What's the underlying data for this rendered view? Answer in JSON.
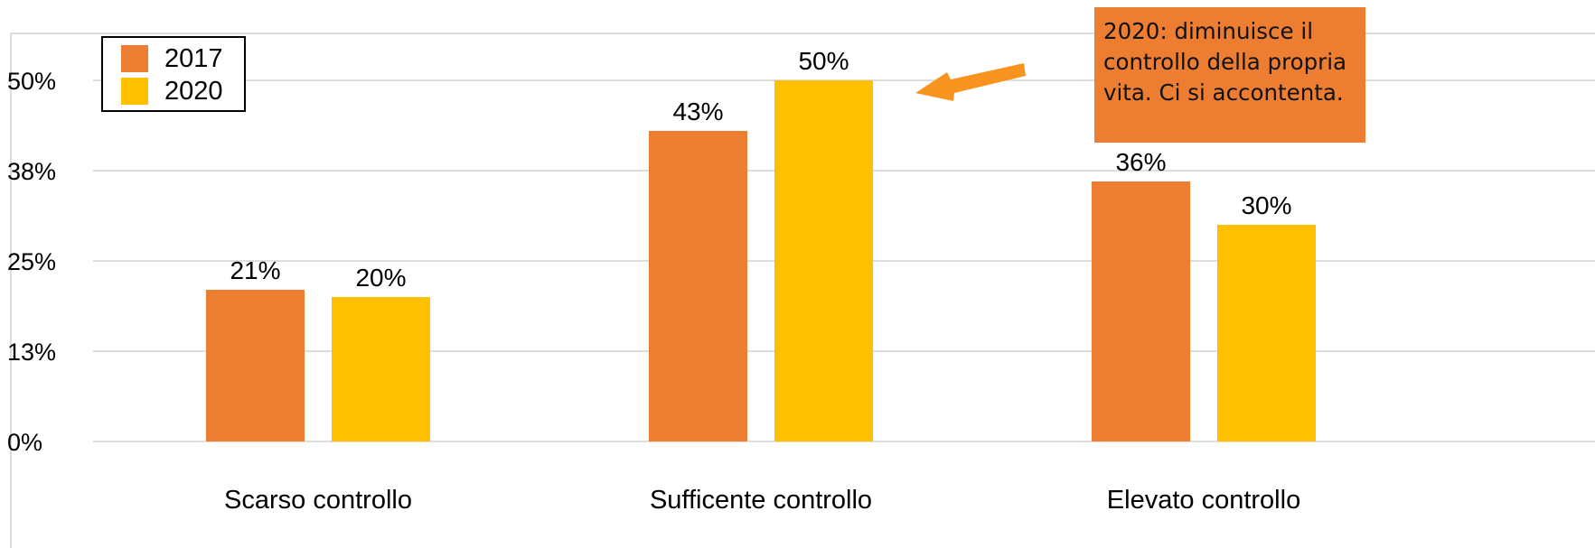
{
  "chart_data": {
    "type": "bar",
    "categories": [
      "Scarso controllo",
      "Sufficente controllo",
      "Elevato controllo"
    ],
    "series": [
      {
        "name": "2017",
        "values": [
          21,
          43,
          36
        ],
        "labels": [
          "21%",
          "43%",
          "36%"
        ],
        "color": "#ED7D31"
      },
      {
        "name": "2020",
        "values": [
          20,
          50,
          30
        ],
        "labels": [
          "20%",
          "50%",
          "30%"
        ],
        "color": "#FFC000"
      }
    ],
    "ylim": [
      0,
      62.5
    ],
    "yticks": [
      0,
      12.5,
      25,
      37.5,
      50
    ],
    "ytick_labels": [
      "0%",
      "13%",
      "25%",
      "38%",
      "50%"
    ],
    "grid": true,
    "legend_position": "top-left",
    "title": "",
    "xlabel": "",
    "ylabel": "",
    "annotation": {
      "text": "2020: diminuisce il controllo della propria vita. Ci si accontenta.",
      "background": "#ED7D31",
      "arrow_color": "#F7931E",
      "points_to": "Sufficente controllo 2020"
    }
  }
}
